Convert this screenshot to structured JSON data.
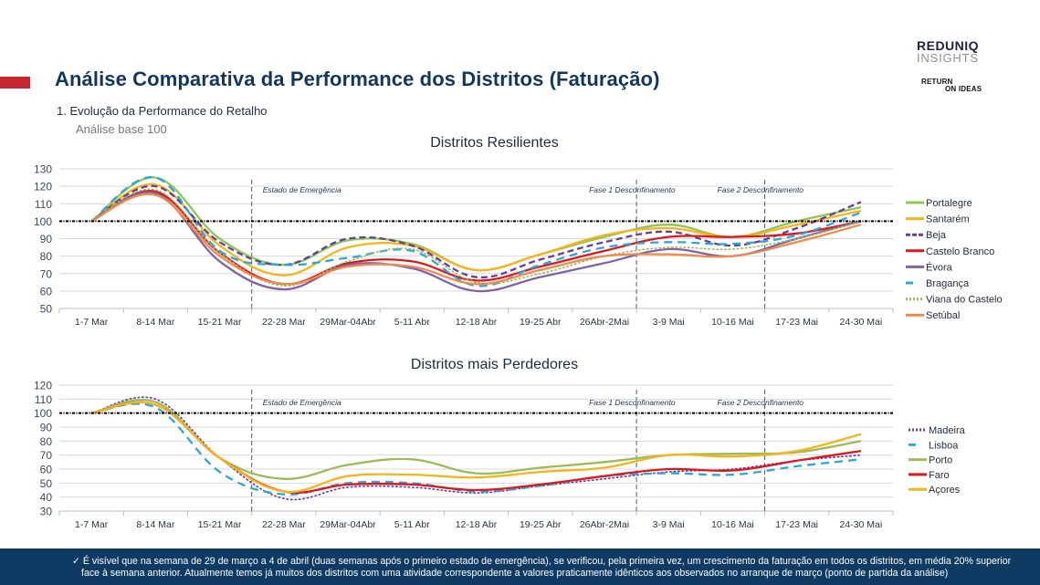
{
  "header": {
    "title": "Análise Comparativa da Performance dos Distritos (Faturação)",
    "subtitle": "1.  Evolução da Performance do Retalho",
    "subsubtitle": "Análise base 100",
    "accent_color": "#c8262f",
    "title_color": "#13365c"
  },
  "logos": {
    "brand_line1": "REDUNIQ",
    "brand_line2": "INSIGHTS",
    "partner_line1": "RETURN",
    "partner_line2": "ON IDEAS"
  },
  "footer": {
    "icon": "check-icon",
    "line1": "✓ É visível que na semana de 29 de março a 4 de abril (duas semanas após o primeiro estado de emergência), se verificou, pela primeira vez, um crescimento da faturação em todos os distritos, em média 20% superior",
    "line2": "face à semana anterior. Atualmente temos já muitos dos distritos com uma atividade correspondente a valores praticamente idênticos aos observados no arranque de março (ponto de partida da análise)",
    "background": "#0f3a63"
  },
  "chart_data": [
    {
      "type": "line",
      "title": "Distritos Resilientes",
      "xlabel": "",
      "ylabel": "",
      "ylim": [
        50,
        130
      ],
      "yticks": [
        50,
        60,
        70,
        80,
        90,
        100,
        110,
        120,
        130
      ],
      "grid": true,
      "legend": "right",
      "baseline": 100,
      "categories": [
        "1-7 Mar",
        "8-14 Mar",
        "15-21 Mar",
        "22-28 Mar",
        "29Mar-04Abr",
        "5-11 Abr",
        "12-18 Abr",
        "19-25 Abr",
        "26Abr-2Mai",
        "3-9 Mai",
        "10-16 Mai",
        "17-23 Mai",
        "24-30 Mai"
      ],
      "annotations": [
        {
          "text": "Estado de Emergência",
          "after_category": "15-21 Mar"
        },
        {
          "text": "Fase 1 Desconfinamento",
          "after_category": "26Abr-2Mai"
        },
        {
          "text": "Fase 2 Desconfinamento",
          "after_category": "10-16 Mai"
        }
      ],
      "series": [
        {
          "name": "Portalegre",
          "color": "#8cc751",
          "dash": "solid",
          "values": [
            100,
            125,
            90,
            75,
            89,
            87,
            72,
            81,
            91,
            98,
            91,
            100,
            108
          ]
        },
        {
          "name": "Santarém",
          "color": "#f5b417",
          "dash": "solid",
          "values": [
            100,
            121,
            86,
            69,
            85,
            86,
            72,
            81,
            92,
            96,
            91,
            98,
            106
          ]
        },
        {
          "name": "Beja",
          "color": "#6a3d9a",
          "dash": "dash",
          "values": [
            100,
            120,
            88,
            75,
            90,
            86,
            68,
            78,
            88,
            94,
            86,
            96,
            111
          ]
        },
        {
          "name": "Castelo Branco",
          "color": "#e0161b",
          "dash": "solid",
          "values": [
            100,
            117,
            82,
            64,
            76,
            77,
            66,
            74,
            83,
            91,
            91,
            93,
            100
          ]
        },
        {
          "name": "Évora",
          "color": "#7e64a3",
          "dash": "solid",
          "values": [
            100,
            116,
            77,
            61,
            75,
            73,
            60,
            68,
            76,
            84,
            80,
            90,
            100
          ]
        },
        {
          "name": "Bragança",
          "color": "#2aa8dc",
          "dash": "longdash",
          "values": [
            100,
            125,
            83,
            75,
            79,
            83,
            63,
            75,
            85,
            88,
            87,
            92,
            105
          ]
        },
        {
          "name": "Viana do Castelo",
          "color": "#9bbb59",
          "dash": "dot",
          "values": [
            100,
            118,
            82,
            63,
            77,
            84,
            65,
            70,
            80,
            85,
            84,
            90,
            100
          ]
        },
        {
          "name": "Setúbal",
          "color": "#f08a4b",
          "dash": "solid",
          "values": [
            100,
            115,
            80,
            64,
            74,
            74,
            64,
            72,
            80,
            81,
            80,
            88,
            98
          ]
        }
      ]
    },
    {
      "type": "line",
      "title": "Distritos mais Perdedores",
      "xlabel": "",
      "ylabel": "",
      "ylim": [
        30,
        120
      ],
      "yticks": [
        30,
        40,
        50,
        60,
        70,
        80,
        90,
        100,
        110,
        120
      ],
      "grid": true,
      "legend": "right",
      "baseline": 100,
      "categories": [
        "1-7 Mar",
        "8-14 Mar",
        "15-21 Mar",
        "22-28 Mar",
        "29Mar-04Abr",
        "5-11 Abr",
        "12-18 Abr",
        "19-25 Abr",
        "26Abr-2Mai",
        "3-9 Mai",
        "10-16 Mai",
        "17-23 Mai",
        "24-30 Mai"
      ],
      "annotations": [
        {
          "text": "Estado de Emergência",
          "after_category": "15-21 Mar"
        },
        {
          "text": "Fase 1 Desconfinamento",
          "after_category": "26Abr-2Mai"
        },
        {
          "text": "Fase 2 Desconfinamento",
          "after_category": "10-16 Mai"
        }
      ],
      "series": [
        {
          "name": "Madeira",
          "color": "#6a3d9a",
          "dash": "dot",
          "values": [
            100,
            110,
            68,
            39,
            47,
            47,
            43,
            48,
            53,
            58,
            60,
            66,
            70
          ]
        },
        {
          "name": "Lisboa",
          "color": "#2aa8dc",
          "dash": "longdash",
          "values": [
            100,
            104,
            58,
            42,
            50,
            50,
            44,
            48,
            55,
            57,
            56,
            62,
            67
          ]
        },
        {
          "name": "Porto",
          "color": "#9bbb59",
          "dash": "solid",
          "values": [
            100,
            108,
            68,
            53,
            63,
            67,
            57,
            61,
            65,
            70,
            71,
            72,
            80
          ]
        },
        {
          "name": "Faro",
          "color": "#e0161b",
          "dash": "solid",
          "values": [
            100,
            106,
            68,
            44,
            49,
            49,
            45,
            49,
            55,
            60,
            59,
            66,
            73
          ]
        },
        {
          "name": "Açores",
          "color": "#f5b417",
          "dash": "solid",
          "values": [
            100,
            106,
            68,
            44,
            55,
            56,
            54,
            58,
            61,
            70,
            69,
            73,
            85
          ]
        }
      ]
    }
  ]
}
